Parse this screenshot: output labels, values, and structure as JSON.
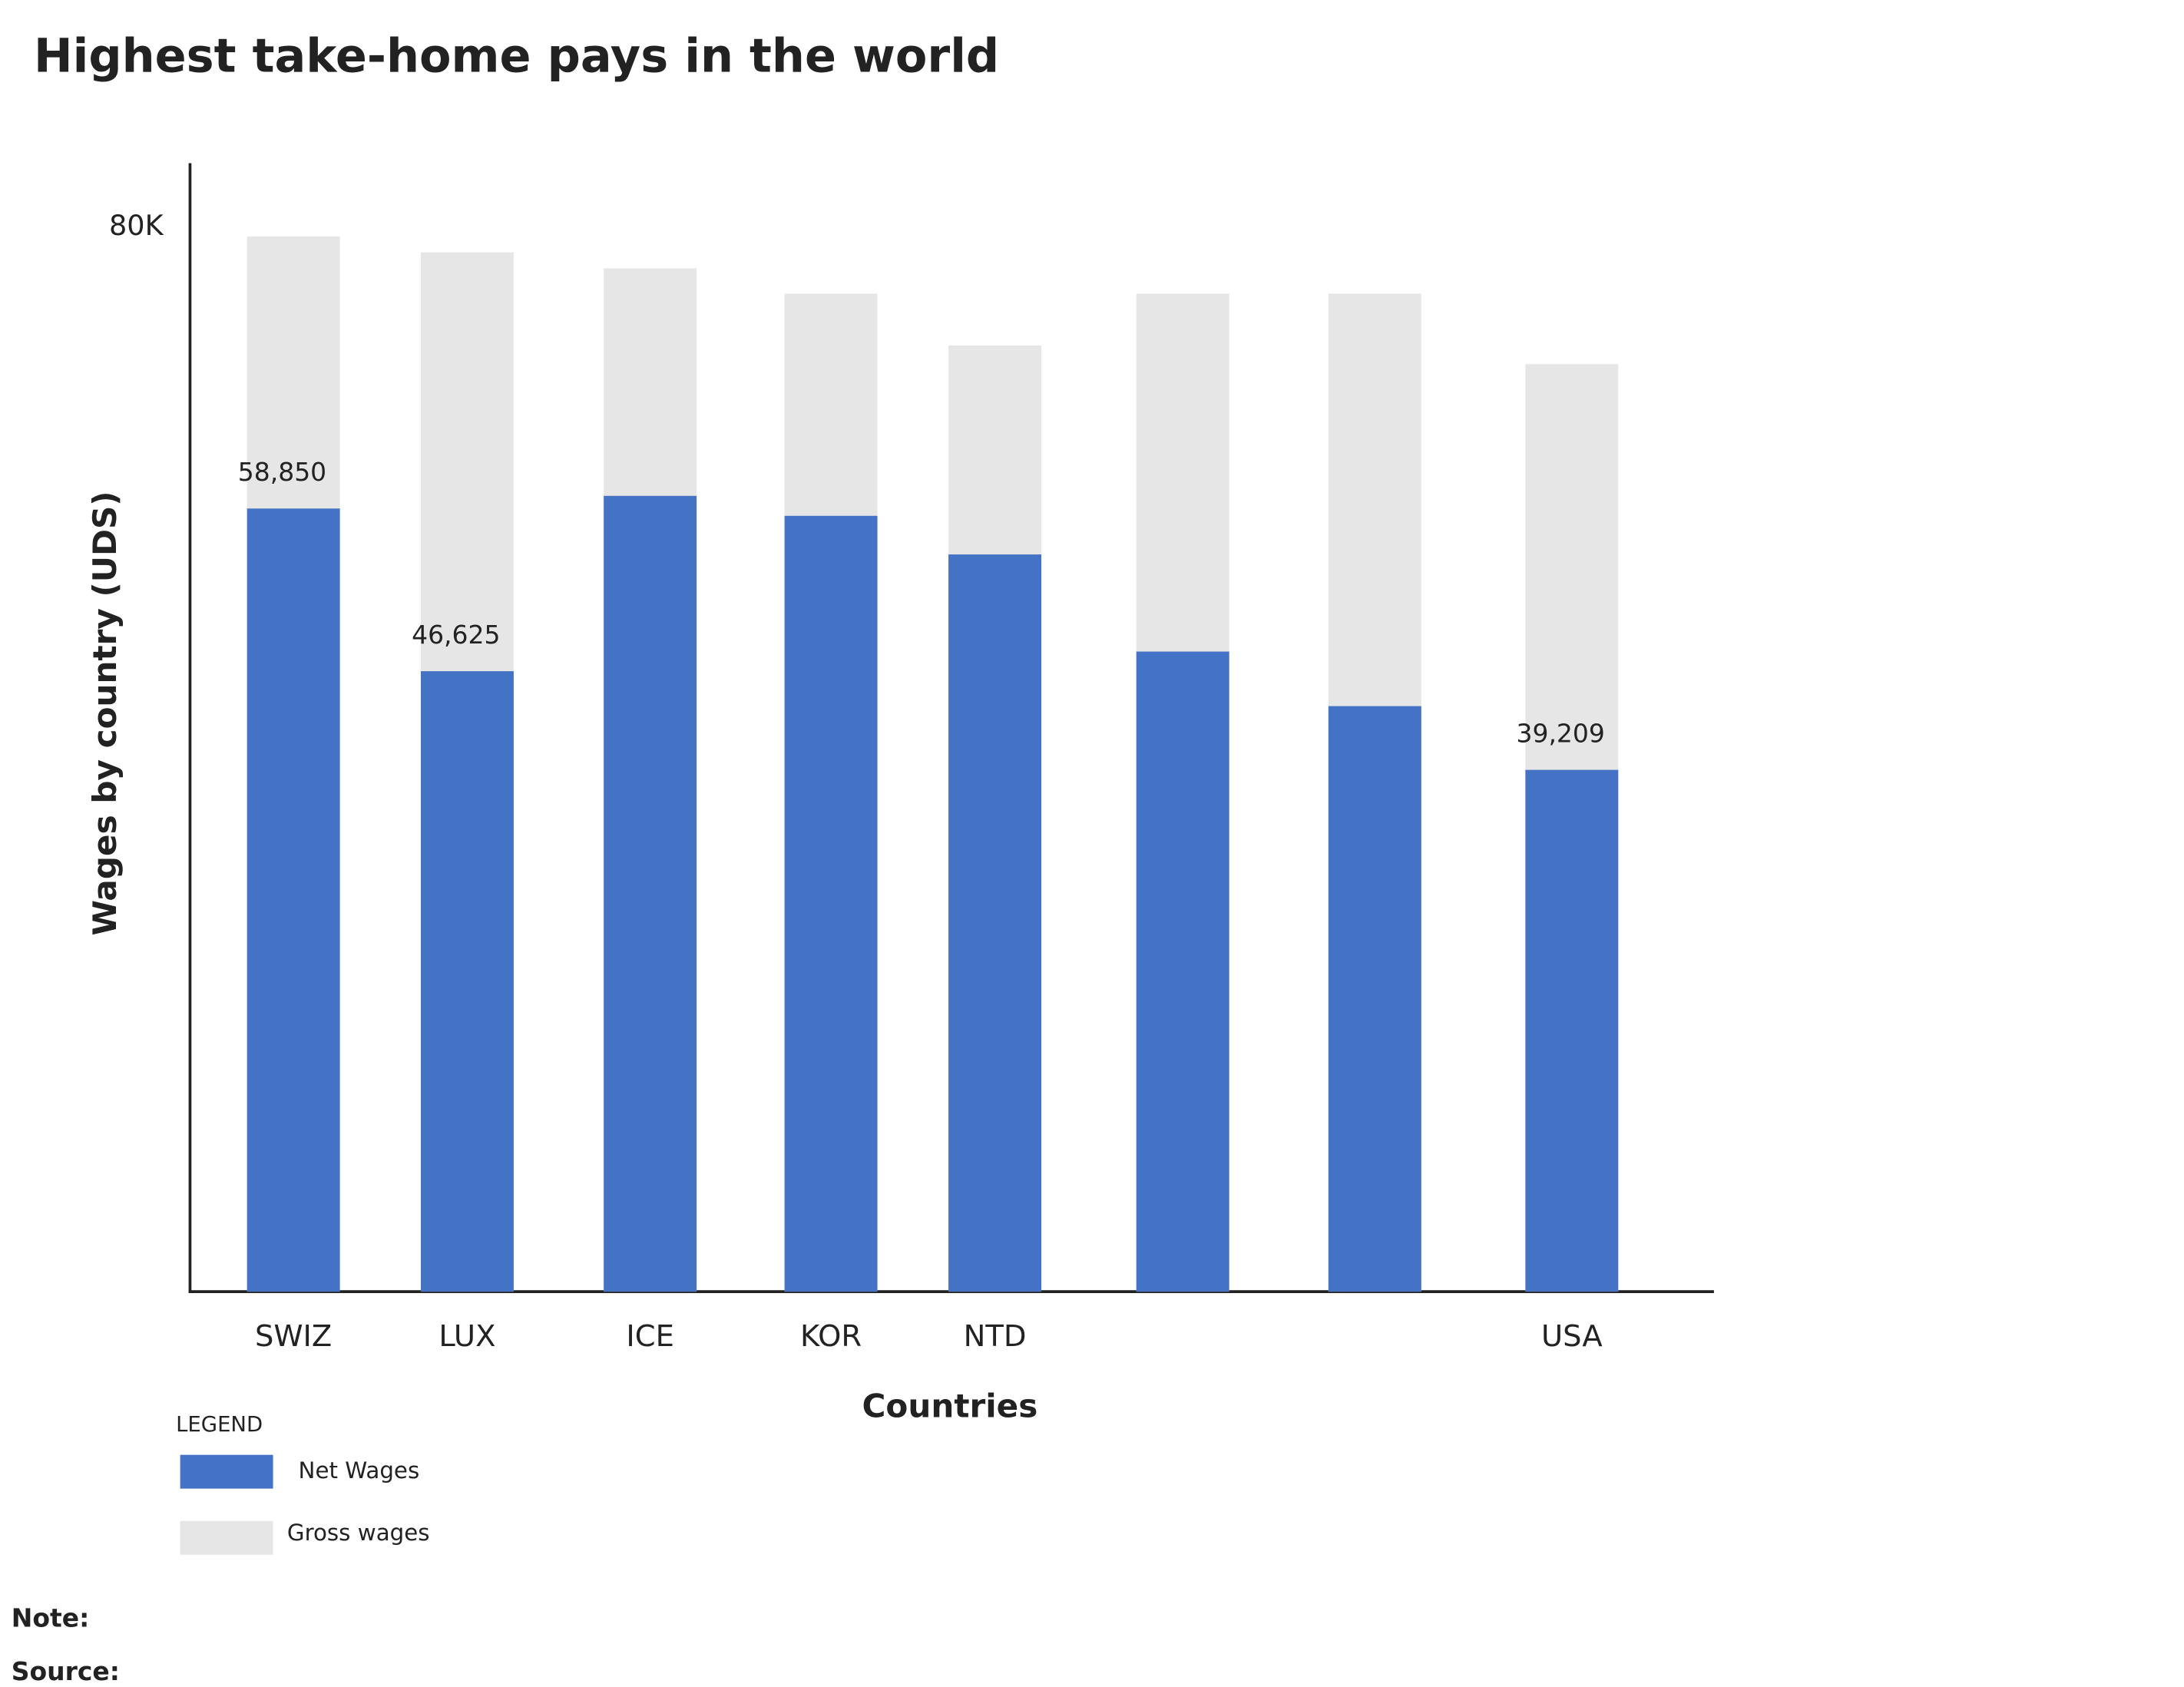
{
  "chart_data": {
    "type": "bar",
    "title": "Highest take-home pays in the world",
    "y_label": "Wages by country (UDS)",
    "x_label": "Countries",
    "legend_title": "LEGEND",
    "note_label": "Note:",
    "source_label": "Source:",
    "categories": [
      "SWIZ",
      "LUX",
      "ICE",
      "KOR",
      "NTD",
      null,
      null,
      "USA"
    ],
    "series": [
      {
        "name": "Net Wages",
        "color": "#4472c4",
        "values": [
          58850,
          46625,
          59800,
          58300,
          55400,
          48100,
          44000,
          39209
        ],
        "value_labels": [
          "58,850",
          "46,625",
          null,
          null,
          null,
          null,
          null,
          "39,209"
        ]
      },
      {
        "name": "Gross wages",
        "color": "#e6e6e6",
        "values": [
          79300,
          78100,
          76900,
          75000,
          71100,
          75000,
          75000,
          69700
        ]
      }
    ],
    "ylim": [
      0,
      84800
    ],
    "yticks": [
      {
        "value": 80000,
        "label": "80K"
      }
    ],
    "grid": false
  }
}
